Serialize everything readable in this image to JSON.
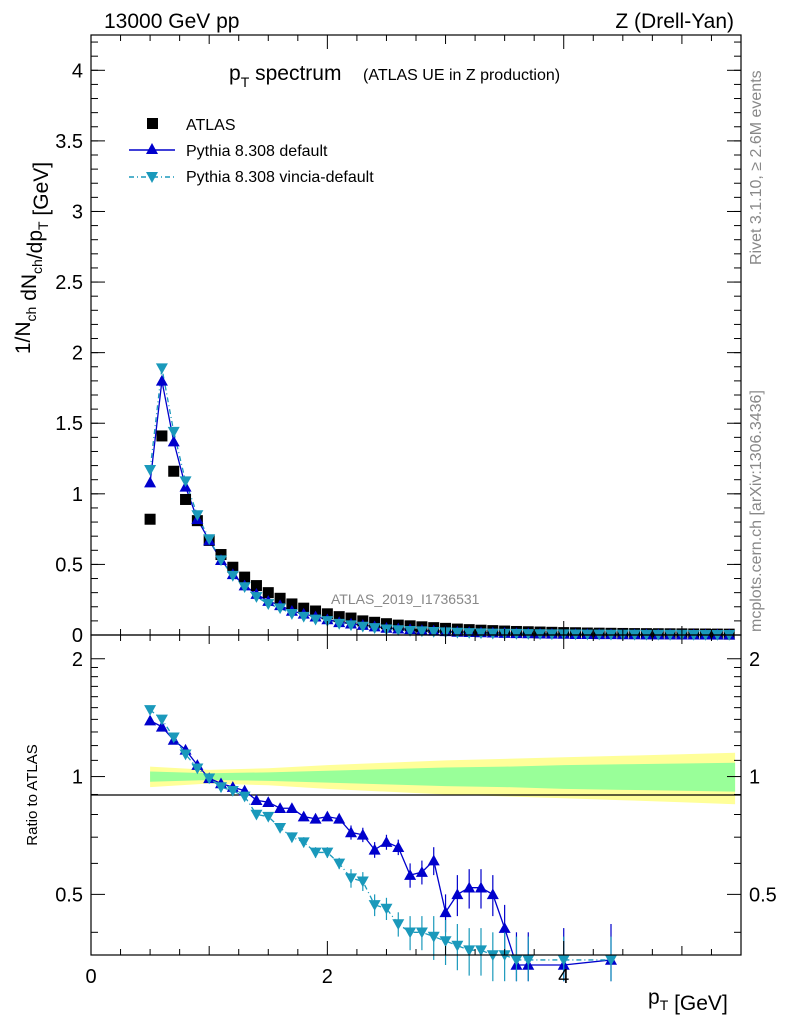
{
  "header": {
    "left": "13000 GeV pp",
    "right": "Z (Drell-Yan)"
  },
  "title": {
    "main": "p",
    "main_sub": "T",
    "main_rest": " spectrum",
    "detail": "(ATLAS UE in Z production)"
  },
  "side_labels": {
    "top": "Rivet 3.1.10, ≥ 2.6M events",
    "bottom": "mcplots.cern.ch [arXiv:1306.3436]"
  },
  "analysis_tag": "ATLAS_2019_I1736531",
  "axes": {
    "ylabel_main": "1/N_ch dN_ch/dp_T [GeV]",
    "ylabel_ratio": "Ratio to ATLAS",
    "xlabel": "p_T [GeV]",
    "x_ticks": [
      "0",
      "2",
      "4"
    ],
    "y_ticks_main": [
      "0",
      "0.5",
      "1",
      "1.5",
      "2",
      "2.5",
      "3",
      "3.5",
      "4"
    ],
    "y_ticks_ratio": [
      "0.5",
      "1",
      "2"
    ]
  },
  "legend": {
    "items": [
      {
        "label": "ATLAS"
      },
      {
        "label": "Pythia 8.308 default"
      },
      {
        "label": "Pythia 8.308 vincia-default"
      }
    ]
  },
  "colors": {
    "data": "#000000",
    "default": "#0000cc",
    "vincia": "#1a99bb",
    "band_inner": "#99ff99",
    "band_outer": "#ffff99"
  },
  "chart_data": [
    {
      "type": "scatter",
      "panel": "main",
      "xlabel": "p_T [GeV]",
      "ylabel": "1/N_ch dN_ch/dp_T [GeV]",
      "xlim": [
        0,
        5.5
      ],
      "ylim": [
        0,
        4.25
      ],
      "x": [
        0.5,
        0.6,
        0.7,
        0.8,
        0.9,
        1.0,
        1.1,
        1.2,
        1.3,
        1.4,
        1.5,
        1.6,
        1.7,
        1.8,
        1.9,
        2.0,
        2.1,
        2.2,
        2.3,
        2.4,
        2.5,
        2.6,
        2.7,
        2.8,
        2.9,
        3.0,
        3.1,
        3.2,
        3.3,
        3.4,
        3.5,
        3.6,
        3.7,
        3.8,
        3.9,
        4.0,
        4.1,
        4.2,
        4.3,
        4.4,
        4.5,
        4.6,
        4.7,
        4.8,
        4.9,
        5.0,
        5.1,
        5.2,
        5.3,
        5.4
      ],
      "series": [
        {
          "name": "ATLAS",
          "marker": "square",
          "values": [
            0.82,
            1.41,
            1.16,
            0.96,
            0.81,
            0.67,
            0.57,
            0.48,
            0.41,
            0.35,
            0.3,
            0.26,
            0.22,
            0.19,
            0.17,
            0.15,
            0.13,
            0.12,
            0.1,
            0.09,
            0.08,
            0.07,
            0.065,
            0.058,
            0.052,
            0.047,
            0.042,
            0.038,
            0.034,
            0.031,
            0.028,
            0.025,
            0.023,
            0.021,
            0.019,
            0.017,
            0.016,
            0.014,
            0.013,
            0.012,
            0.011,
            0.01,
            0.0095,
            0.009,
            0.0085,
            0.008,
            0.0075,
            0.007,
            0.0065,
            0.006
          ]
        },
        {
          "name": "Pythia 8.308 default",
          "marker": "triangle-up",
          "values": [
            1.08,
            1.8,
            1.37,
            1.05,
            0.82,
            0.67,
            0.53,
            0.43,
            0.35,
            0.29,
            0.24,
            0.21,
            0.17,
            0.15,
            0.13,
            0.11,
            0.09,
            0.08,
            0.07,
            0.06,
            0.05,
            0.045,
            0.04,
            0.034,
            0.03,
            0.026,
            0.022,
            0.02,
            0.018,
            0.016,
            0.014,
            0.012,
            0.011,
            0.009,
            0.008,
            0.007,
            0.006,
            0.0055,
            0.005,
            0.0045,
            0.004,
            0.0036,
            0.0033,
            0.003,
            0.0027,
            0.0025,
            0.0023,
            0.0021,
            0.002,
            0.0018
          ]
        },
        {
          "name": "Pythia 8.308 vincia-default",
          "marker": "triangle-down",
          "values": [
            1.17,
            1.89,
            1.44,
            1.09,
            0.85,
            0.68,
            0.53,
            0.42,
            0.34,
            0.27,
            0.22,
            0.19,
            0.15,
            0.13,
            0.11,
            0.1,
            0.08,
            0.07,
            0.06,
            0.05,
            0.04,
            0.035,
            0.03,
            0.027,
            0.023,
            0.02,
            0.017,
            0.015,
            0.013,
            0.011,
            0.01,
            0.009,
            0.008,
            0.007,
            0.006,
            0.0055,
            0.005,
            0.0045,
            0.004,
            0.0035,
            0.003,
            0.0028,
            0.0025,
            0.0023,
            0.0021,
            0.0019,
            0.0017,
            0.0016,
            0.0015,
            0.0014
          ]
        }
      ]
    },
    {
      "type": "line",
      "panel": "ratio",
      "xlabel": "p_T [GeV]",
      "ylabel": "Ratio to ATLAS",
      "xlim": [
        0,
        5.5
      ],
      "ylim": [
        0.35,
        2.3
      ],
      "ylog": true,
      "reference_line": 1,
      "band": {
        "x": [
          0.5,
          1.0,
          1.5,
          2.0,
          2.5,
          3.0,
          3.5,
          4.0,
          4.5,
          5.0,
          5.45
        ],
        "inner": [
          0.03,
          0.02,
          0.025,
          0.035,
          0.045,
          0.055,
          0.06,
          0.07,
          0.075,
          0.08,
          0.085
        ],
        "outer": [
          0.06,
          0.04,
          0.05,
          0.07,
          0.085,
          0.1,
          0.11,
          0.12,
          0.13,
          0.14,
          0.15
        ]
      },
      "x": [
        0.5,
        0.6,
        0.7,
        0.8,
        0.9,
        1.0,
        1.1,
        1.2,
        1.3,
        1.4,
        1.5,
        1.6,
        1.7,
        1.8,
        1.9,
        2.0,
        2.1,
        2.2,
        2.3,
        2.4,
        2.5,
        2.6,
        2.7,
        2.8,
        2.9,
        3.0,
        3.1,
        3.2,
        3.3,
        3.4,
        3.5,
        3.6,
        3.7,
        4.0,
        4.4
      ],
      "series": [
        {
          "name": "Pythia 8.308 default",
          "marker": "triangle-up",
          "values": [
            1.39,
            1.34,
            1.24,
            1.17,
            1.07,
            0.99,
            0.96,
            0.94,
            0.92,
            0.87,
            0.86,
            0.83,
            0.83,
            0.79,
            0.78,
            0.79,
            0.78,
            0.72,
            0.71,
            0.65,
            0.68,
            0.66,
            0.56,
            0.57,
            0.61,
            0.45,
            0.5,
            0.52,
            0.52,
            0.5,
            0.41,
            0.33,
            0.33,
            0.33,
            0.34
          ],
          "errors": [
            0.02,
            0.02,
            0.02,
            0.02,
            0.02,
            0.02,
            0.02,
            0.02,
            0.02,
            0.02,
            0.02,
            0.02,
            0.02,
            0.02,
            0.02,
            0.02,
            0.02,
            0.03,
            0.03,
            0.03,
            0.03,
            0.03,
            0.04,
            0.04,
            0.05,
            0.05,
            0.06,
            0.06,
            0.06,
            0.06,
            0.06,
            0.07,
            0.07,
            0.08,
            0.08
          ]
        },
        {
          "name": "Pythia 8.308 vincia-default",
          "marker": "triangle-down",
          "values": [
            1.48,
            1.4,
            1.26,
            1.14,
            1.05,
            0.99,
            0.94,
            0.92,
            0.89,
            0.8,
            0.79,
            0.74,
            0.7,
            0.68,
            0.64,
            0.64,
            0.6,
            0.55,
            0.54,
            0.47,
            0.46,
            0.42,
            0.4,
            0.4,
            0.39,
            0.38,
            0.37,
            0.36,
            0.36,
            0.35,
            0.35,
            0.34,
            0.34,
            0.34,
            0.34
          ],
          "errors": [
            0.02,
            0.02,
            0.02,
            0.02,
            0.02,
            0.02,
            0.02,
            0.02,
            0.02,
            0.02,
            0.02,
            0.02,
            0.02,
            0.02,
            0.02,
            0.02,
            0.02,
            0.03,
            0.03,
            0.03,
            0.03,
            0.03,
            0.04,
            0.04,
            0.05,
            0.05,
            0.05,
            0.05,
            0.05,
            0.05,
            0.05,
            0.05,
            0.05,
            0.05,
            0.05
          ]
        }
      ]
    }
  ]
}
